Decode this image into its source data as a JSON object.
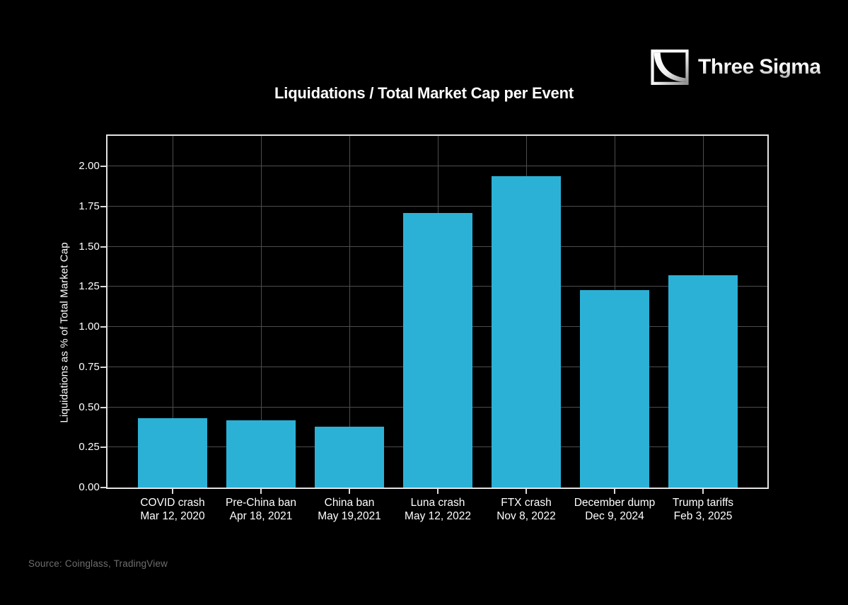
{
  "page": {
    "background": "#000000"
  },
  "brand": {
    "name": "Three Sigma",
    "icon": "three-sigma-square-decay-curve-icon"
  },
  "chart_data": {
    "type": "bar",
    "title": "Liquidations / Total Market Cap per Event",
    "ylabel": "Liquidations as % of Total Market Cap",
    "xlabel": "",
    "categories": [
      "COVID crash",
      "Pre-China ban",
      "China ban",
      "Luna crash",
      "FTX crash",
      "December dump",
      "Trump tariffs"
    ],
    "category_dates": [
      "Mar 12, 2020",
      "Apr 18, 2021",
      "May 19,2021",
      "May 12, 2022",
      "Nov 8, 2022",
      "Dec 9, 2024",
      "Feb 3, 2025"
    ],
    "values": [
      0.43,
      0.42,
      0.38,
      1.71,
      1.94,
      1.23,
      1.32
    ],
    "yticks": [
      "0.00",
      "0.25",
      "0.50",
      "0.75",
      "1.00",
      "1.25",
      "1.50",
      "1.75",
      "2.00"
    ],
    "ylim": [
      0,
      2.19
    ],
    "grid": true,
    "legend": false,
    "bar_color": "#2CB1D6",
    "grid_color": "#4d4d4d",
    "axis_color": "#e3e3e3",
    "text_color": "#ffffff"
  },
  "footer": {
    "source": "Source: Coinglass, TradingView"
  }
}
